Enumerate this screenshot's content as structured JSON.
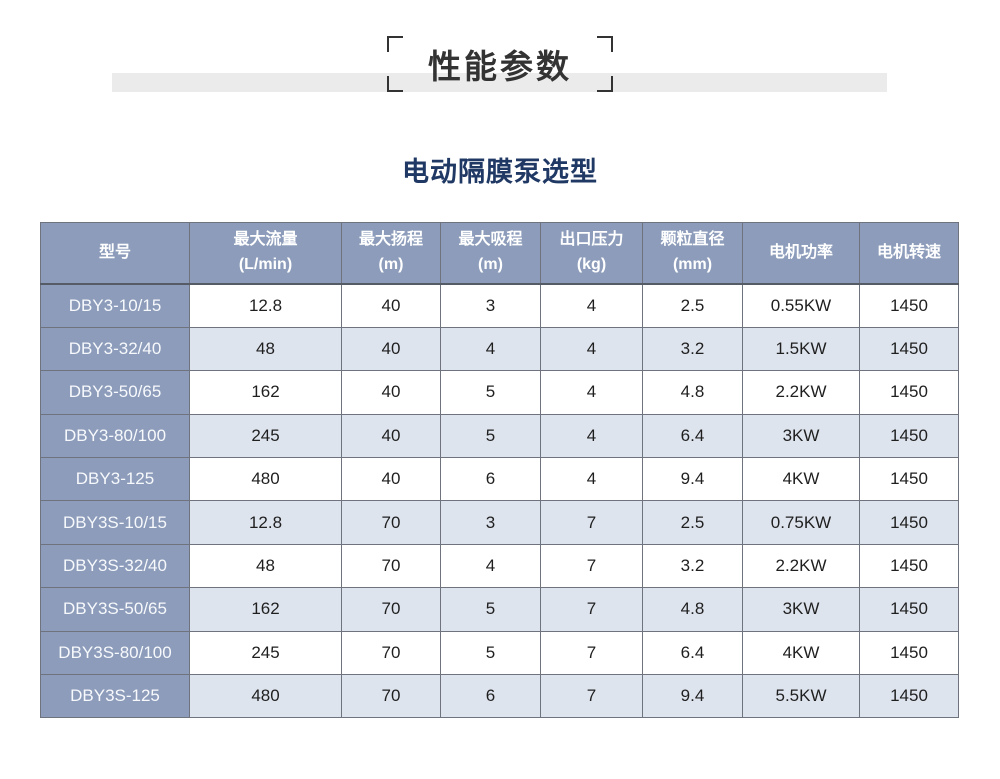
{
  "page": {
    "title": "性能参数",
    "subtitle": "电动隔膜泵选型"
  },
  "colors": {
    "title_text": "#333333",
    "band_background": "#ebebeb",
    "subtitle_text": "#1f3864",
    "table_header_background": "#8c9cba",
    "table_header_text": "#ffffff",
    "row_alternate_background": "#dee4ee",
    "grid_border": "#6e737d",
    "data_text": "#1f1f1f"
  },
  "table": {
    "headers": [
      [
        "型号"
      ],
      [
        "最大流量",
        "(L/min)"
      ],
      [
        "最大扬程",
        "(m)"
      ],
      [
        "最大吸程",
        "(m)"
      ],
      [
        "出口压力",
        "(kg)"
      ],
      [
        "颗粒直径",
        "(mm)"
      ],
      [
        "电机功率"
      ],
      [
        "电机转速"
      ]
    ],
    "rows": [
      [
        "DBY3-10/15",
        "12.8",
        "40",
        "3",
        "4",
        "2.5",
        "0.55KW",
        "1450"
      ],
      [
        "DBY3-32/40",
        "48",
        "40",
        "4",
        "4",
        "3.2",
        "1.5KW",
        "1450"
      ],
      [
        "DBY3-50/65",
        "162",
        "40",
        "5",
        "4",
        "4.8",
        "2.2KW",
        "1450"
      ],
      [
        "DBY3-80/100",
        "245",
        "40",
        "5",
        "4",
        "6.4",
        "3KW",
        "1450"
      ],
      [
        "DBY3-125",
        "480",
        "40",
        "6",
        "4",
        "9.4",
        "4KW",
        "1450"
      ],
      [
        "DBY3S-10/15",
        "12.8",
        "70",
        "3",
        "7",
        "2.5",
        "0.75KW",
        "1450"
      ],
      [
        "DBY3S-32/40",
        "48",
        "70",
        "4",
        "7",
        "3.2",
        "2.2KW",
        "1450"
      ],
      [
        "DBY3S-50/65",
        "162",
        "70",
        "5",
        "7",
        "4.8",
        "3KW",
        "1450"
      ],
      [
        "DBY3S-80/100",
        "245",
        "70",
        "5",
        "7",
        "6.4",
        "4KW",
        "1450"
      ],
      [
        "DBY3S-125",
        "480",
        "70",
        "6",
        "7",
        "9.4",
        "5.5KW",
        "1450"
      ]
    ]
  }
}
